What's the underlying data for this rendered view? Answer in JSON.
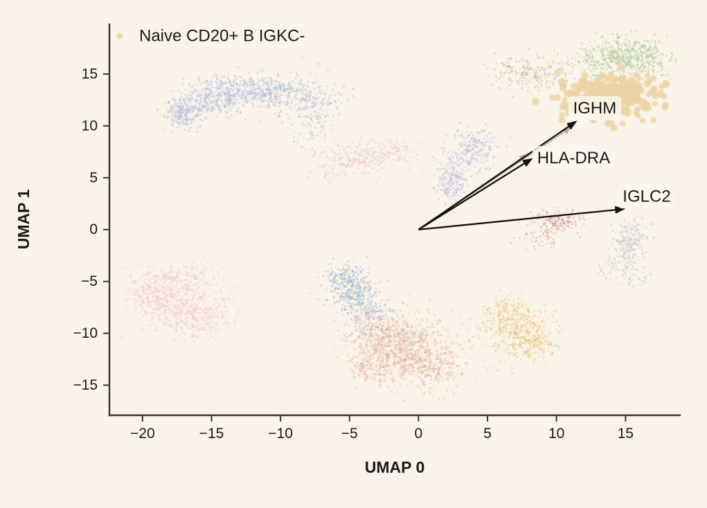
{
  "styles": {
    "background": "#faf3e9",
    "axis_color": "#38342c",
    "text_color": "#191919",
    "arrow_color": "#12100d",
    "ghost_arrow_color": "#938d82",
    "label_box_fill": "rgba(251,246,238,0.82)"
  },
  "chart_data": {
    "type": "scatter",
    "title": "",
    "xlabel": "UMAP 0",
    "ylabel": "UMAP 1",
    "xlim": [
      -22.4,
      19.0
    ],
    "ylim": [
      -17.9,
      19.8
    ],
    "x_ticks": [
      -20,
      -15,
      -10,
      -5,
      0,
      5,
      10,
      15
    ],
    "y_ticks": [
      -15,
      -10,
      -5,
      0,
      5,
      10,
      15
    ],
    "grid": false,
    "legend": {
      "position": "upper-left-inside",
      "entries": [
        {
          "label": "Naive CD20+ B IGKC-",
          "color": "#ecd9ab"
        }
      ]
    },
    "arrows": [
      {
        "gene": "IGHM",
        "from": [
          0,
          0
        ],
        "to": [
          11.5,
          10.5
        ],
        "label_at": [
          11.2,
          11.7
        ],
        "ghost_to": [
          11.1,
          9.9
        ]
      },
      {
        "gene": "HLA-DRA",
        "from": [
          0,
          0
        ],
        "to": [
          8.3,
          6.9
        ],
        "label_at": [
          8.6,
          6.9
        ],
        "ghost_to": [
          7.9,
          7.3
        ]
      },
      {
        "gene": "IGLC2",
        "from": [
          0,
          0
        ],
        "to": [
          15.0,
          2.0
        ],
        "label_at": [
          14.8,
          3.2
        ],
        "ghost_to": null
      }
    ],
    "clusters": [
      {
        "name": "blue-arc-top-left",
        "color": "#9bb5d8",
        "opacity": 0.45,
        "r": 1.3,
        "blobs": [
          [
            -17.0,
            11.3,
            0.65,
            0.8,
            240
          ],
          [
            -15.0,
            12.6,
            1.2,
            0.9,
            280
          ],
          [
            -12.4,
            13.5,
            1.5,
            0.85,
            300
          ],
          [
            -9.9,
            13.1,
            1.5,
            1.0,
            260
          ],
          [
            -7.7,
            12.4,
            1.2,
            1.1,
            150
          ],
          [
            -7.8,
            9.6,
            0.8,
            1.3,
            60
          ]
        ]
      },
      {
        "name": "olive-top",
        "color": "#a9ac8f",
        "opacity": 0.5,
        "r": 1.2,
        "blobs": [
          [
            7.9,
            15.0,
            1.5,
            0.85,
            200
          ]
        ]
      },
      {
        "name": "green-top-right",
        "color": "#97c386",
        "opacity": 0.45,
        "r": 1.3,
        "blobs": [
          [
            14.9,
            17.0,
            1.5,
            0.8,
            380
          ],
          [
            13.2,
            15.9,
            1.1,
            0.8,
            120
          ],
          [
            16.6,
            16.0,
            0.9,
            0.7,
            90
          ]
        ]
      },
      {
        "name": "naive-b-tan-highlight",
        "color": "#ebd5a4",
        "opacity": 0.85,
        "r": 4.6,
        "blobs": [
          [
            13.9,
            12.9,
            1.6,
            1.05,
            280
          ],
          [
            11.7,
            12.2,
            0.8,
            0.7,
            45
          ]
        ]
      },
      {
        "name": "pink-center",
        "color": "#e3b1c1",
        "opacity": 0.45,
        "r": 1.2,
        "blobs": [
          [
            -4.6,
            6.9,
            1.3,
            0.8,
            170
          ],
          [
            -2.0,
            7.3,
            1.1,
            0.7,
            130
          ],
          [
            -6.2,
            5.9,
            0.8,
            0.8,
            60
          ]
        ]
      },
      {
        "name": "lavender-center",
        "color": "#a6addb",
        "opacity": 0.5,
        "r": 1.2,
        "blobs": [
          [
            4.1,
            8.1,
            0.8,
            1.0,
            160
          ],
          [
            2.3,
            4.6,
            0.55,
            1.1,
            170
          ],
          [
            3.3,
            6.6,
            0.9,
            1.3,
            110
          ]
        ]
      },
      {
        "name": "pink-bottom-left",
        "color": "#f0bfcb",
        "opacity": 0.45,
        "r": 1.3,
        "blobs": [
          [
            -17.6,
            -6.6,
            1.6,
            1.5,
            440
          ],
          [
            -19.3,
            -6.2,
            0.9,
            1.3,
            220
          ],
          [
            -15.9,
            -8.5,
            1.3,
            1.0,
            260
          ],
          [
            -17.3,
            -4.5,
            1.5,
            0.7,
            130
          ]
        ]
      },
      {
        "name": "steelblue-bottom",
        "color": "#8cb0cb",
        "opacity": 0.5,
        "r": 1.3,
        "blobs": [
          [
            -4.9,
            -5.7,
            0.9,
            1.0,
            260
          ],
          [
            -3.8,
            -7.9,
            0.9,
            1.1,
            170
          ],
          [
            -5.6,
            -4.3,
            0.6,
            0.6,
            60
          ]
        ]
      },
      {
        "name": "salmon-bottom",
        "color": "#df997b",
        "opacity": 0.35,
        "r": 1.3,
        "blobs": [
          [
            -1.0,
            -11.6,
            1.9,
            1.6,
            800
          ],
          [
            -2.6,
            -9.9,
            1.2,
            1.1,
            220
          ],
          [
            0.9,
            -13.3,
            1.3,
            1.1,
            220
          ],
          [
            -3.3,
            -13.2,
            1.0,
            0.9,
            140
          ]
        ]
      },
      {
        "name": "blue-specks-in-salmon",
        "color": "#8cb0cb",
        "opacity": 0.3,
        "r": 1.2,
        "blobs": [
          [
            -1.4,
            -10.8,
            2.0,
            1.6,
            140
          ]
        ]
      },
      {
        "name": "golden-bottom-right",
        "color": "#e5ba61",
        "opacity": 0.45,
        "r": 1.3,
        "blobs": [
          [
            7.4,
            -9.6,
            1.25,
            1.35,
            430
          ],
          [
            6.2,
            -8.2,
            0.8,
            0.8,
            90
          ],
          [
            8.8,
            -11.2,
            0.7,
            0.7,
            70
          ]
        ]
      },
      {
        "name": "dustyred-right",
        "color": "#c78a8a",
        "opacity": 0.5,
        "r": 1.2,
        "blobs": [
          [
            10.3,
            0.9,
            0.75,
            0.65,
            150
          ],
          [
            9.0,
            -0.5,
            0.9,
            0.7,
            60
          ]
        ]
      },
      {
        "name": "bluegray-right",
        "color": "#b2c3cd",
        "opacity": 0.5,
        "r": 1.2,
        "blobs": [
          [
            15.6,
            -0.4,
            0.6,
            0.85,
            130
          ],
          [
            15.1,
            -2.2,
            0.6,
            1.0,
            130
          ],
          [
            14.4,
            -3.6,
            0.7,
            0.6,
            60
          ],
          [
            15.9,
            -4.6,
            0.5,
            0.5,
            30
          ]
        ]
      },
      {
        "name": "background-sparse",
        "opacity": 0.18,
        "r": 1.1,
        "uniform": [
          -21,
          18,
          -16.5,
          18.8
        ],
        "n": 170,
        "palette": [
          "#9bb5d8",
          "#e3b1c1",
          "#97c386",
          "#e5ba61",
          "#c78a8a",
          "#a6addb",
          "#df997b"
        ]
      }
    ]
  }
}
